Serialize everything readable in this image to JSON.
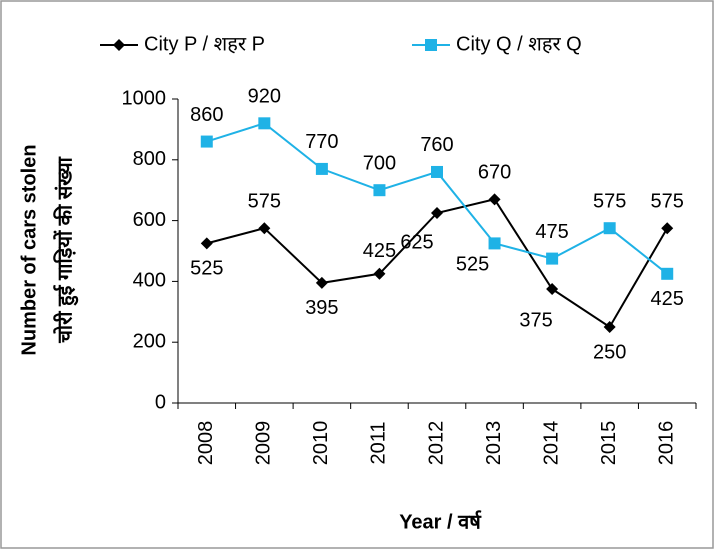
{
  "chart_data": {
    "type": "line",
    "y_label_lines": [
      "Number of cars stolen",
      "चोरी हुई गाड़ियों की संख्या"
    ],
    "x_label": "Year / वर्ष",
    "categories": [
      "2008",
      "2009",
      "2010",
      "2011",
      "2012",
      "2013",
      "2014",
      "2015",
      "2016"
    ],
    "series": [
      {
        "name": "City P / शहर P",
        "color": "#000000",
        "marker": "diamond",
        "values": [
          525,
          575,
          395,
          425,
          625,
          670,
          375,
          250,
          575
        ]
      },
      {
        "name": "City Q / शहर Q",
        "color": "#1fb2e6",
        "marker": "square",
        "values": [
          860,
          920,
          770,
          700,
          760,
          525,
          475,
          575,
          425
        ]
      }
    ],
    "ylim": [
      0,
      1000
    ],
    "yticks": [
      0,
      200,
      400,
      600,
      800,
      1000
    ],
    "grid": false
  }
}
